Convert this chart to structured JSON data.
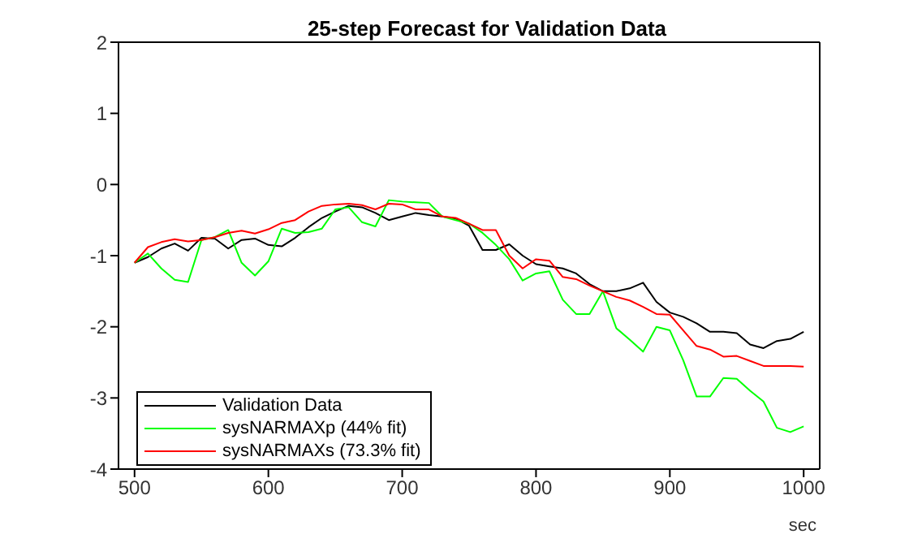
{
  "chart_data": {
    "type": "line",
    "title": "25-step Forecast for Validation Data",
    "xlabel": "sec",
    "x": [
      500,
      510,
      520,
      530,
      540,
      550,
      560,
      570,
      580,
      590,
      600,
      610,
      620,
      630,
      640,
      650,
      660,
      670,
      680,
      690,
      700,
      710,
      720,
      730,
      740,
      750,
      760,
      770,
      780,
      790,
      800,
      810,
      820,
      830,
      840,
      850,
      860,
      870,
      880,
      890,
      900,
      910,
      920,
      930,
      940,
      950,
      960,
      970,
      980,
      990,
      1000
    ],
    "series": [
      {
        "name": "Validation Data",
        "color": "#000000",
        "values": [
          -1.1,
          -1.02,
          -0.9,
          -0.83,
          -0.93,
          -0.75,
          -0.76,
          -0.9,
          -0.78,
          -0.76,
          -0.85,
          -0.87,
          -0.75,
          -0.6,
          -0.47,
          -0.38,
          -0.3,
          -0.32,
          -0.4,
          -0.5,
          -0.45,
          -0.4,
          -0.43,
          -0.45,
          -0.48,
          -0.58,
          -0.92,
          -0.92,
          -0.84,
          -1.0,
          -1.12,
          -1.15,
          -1.18,
          -1.25,
          -1.4,
          -1.5,
          -1.5,
          -1.46,
          -1.38,
          -1.65,
          -1.8,
          -1.86,
          -1.95,
          -2.07,
          -2.07,
          -2.09,
          -2.25,
          -2.3,
          -2.2,
          -2.17,
          -2.07
        ]
      },
      {
        "name": "sysNARMAXp (44% fit)",
        "color": "#00ff00",
        "values": [
          -1.1,
          -0.97,
          -1.18,
          -1.34,
          -1.37,
          -0.78,
          -0.74,
          -0.64,
          -1.1,
          -1.28,
          -1.08,
          -0.62,
          -0.68,
          -0.67,
          -0.62,
          -0.35,
          -0.32,
          -0.53,
          -0.59,
          -0.22,
          -0.24,
          -0.25,
          -0.26,
          -0.45,
          -0.5,
          -0.55,
          -0.68,
          -0.85,
          -1.05,
          -1.35,
          -1.25,
          -1.22,
          -1.62,
          -1.82,
          -1.82,
          -1.5,
          -2.02,
          -2.18,
          -2.35,
          -2.0,
          -2.05,
          -2.47,
          -2.98,
          -2.98,
          -2.72,
          -2.73,
          -2.9,
          -3.05,
          -3.42,
          -3.48,
          -3.4
        ]
      },
      {
        "name": "sysNARMAXs (73.3% fit)",
        "color": "#ff0000",
        "values": [
          -1.1,
          -0.88,
          -0.81,
          -0.77,
          -0.8,
          -0.78,
          -0.74,
          -0.68,
          -0.65,
          -0.69,
          -0.63,
          -0.54,
          -0.5,
          -0.38,
          -0.3,
          -0.28,
          -0.27,
          -0.29,
          -0.35,
          -0.27,
          -0.28,
          -0.35,
          -0.35,
          -0.45,
          -0.47,
          -0.55,
          -0.64,
          -0.64,
          -1.0,
          -1.18,
          -1.05,
          -1.07,
          -1.3,
          -1.33,
          -1.42,
          -1.5,
          -1.58,
          -1.63,
          -1.72,
          -1.82,
          -1.83,
          -2.05,
          -2.27,
          -2.32,
          -2.42,
          -2.41,
          -2.48,
          -2.55,
          -2.55,
          -2.55,
          -2.56
        ]
      }
    ],
    "xlim": [
      488,
      1012
    ],
    "xticks": [
      500,
      600,
      700,
      800,
      900,
      1000
    ],
    "ylim": [
      -4,
      2
    ],
    "yticks": [
      -4,
      -3,
      -2,
      -1,
      0,
      1,
      2
    ],
    "grid": false,
    "legend": "bottom left",
    "marker": "none",
    "line_style": "solid"
  }
}
